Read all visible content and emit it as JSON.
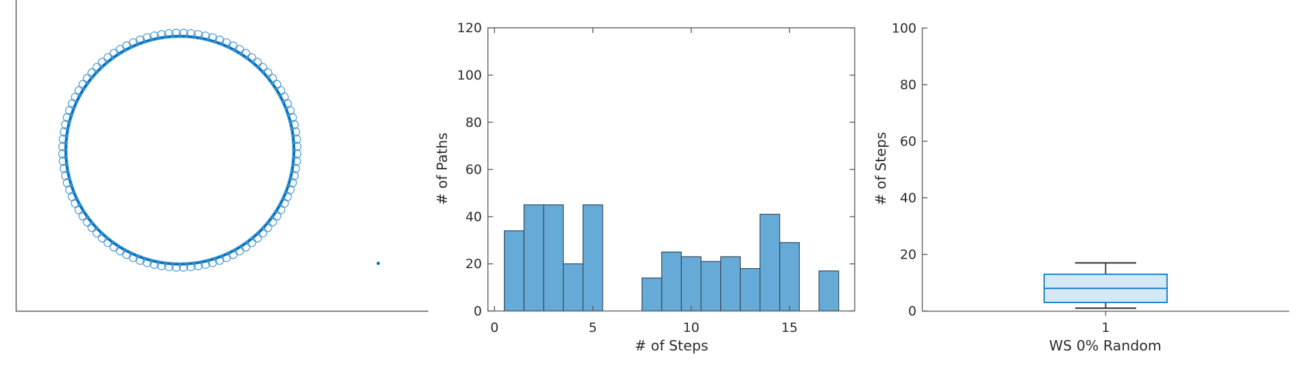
{
  "figure": {
    "type": "MATLAB-style figure with three panels",
    "background": "#ffffff"
  },
  "colors": {
    "edge_blue": "#0072BD",
    "node_circle_blue": "#4D9BD5",
    "hist_bar_fill": "#66AAD7",
    "hist_bar_edge": "#33495C",
    "box_fill": "#D6E7F6",
    "box_edge": "#0072BD",
    "whisker_color": "#2B2B2B",
    "spine_color": "#5F5F5F",
    "text_color": "#2B2B2B"
  },
  "network_panel": {
    "description": "ring lattice graph (Watts-Strogatz 0% random rewiring): thick blue ring of edges, open-circle node markers around it, one isolated node dot at lower right",
    "node_count": 100,
    "isolated_point": true
  },
  "histogram_panel": {
    "ylabel": "# of Paths",
    "xlabel": "# of Steps",
    "x_ticks": [
      "0",
      "5",
      "10",
      "15"
    ],
    "y_ticks": [
      "0",
      "20",
      "40",
      "60",
      "80",
      "100",
      "120"
    ]
  },
  "box_panel": {
    "ylabel": "# of Steps",
    "xlabel": "WS 0% Random",
    "x_ticks": [
      "1"
    ],
    "y_ticks": [
      "0",
      "20",
      "40",
      "60",
      "80",
      "100"
    ]
  },
  "chart_data": [
    {
      "type": "scatter",
      "subtype": "ring_network_graph",
      "n_nodes": 100,
      "layout": "circle",
      "note": "solid blue circular band of ring-lattice edges with small node dots on it, overlapping open-circle markers just outside the band, plus one isolated node point at lower right of the panel"
    },
    {
      "type": "bar",
      "subtype": "histogram",
      "xlabel": "# of Steps",
      "ylabel": "# of Paths",
      "bin_width": 1,
      "categories": [
        1,
        2,
        3,
        4,
        5,
        6,
        7,
        8,
        9,
        10,
        11,
        12,
        13,
        14,
        15,
        16,
        17
      ],
      "values": [
        34,
        45,
        45,
        20,
        45,
        0,
        0,
        14,
        25,
        23,
        21,
        23,
        18,
        41,
        29,
        0,
        17
      ],
      "xlim": [
        -0.35,
        18.3
      ],
      "ylim": [
        0,
        120
      ],
      "grid": false,
      "legend": false
    },
    {
      "type": "boxplot",
      "xlabel": "WS 0% Random",
      "ylabel": "# of Steps",
      "categories": [
        "1"
      ],
      "ylim": [
        0,
        100
      ],
      "stats": [
        {
          "group": "1",
          "min": 1,
          "q1": 3,
          "median": 8,
          "q3": 13,
          "max": 17
        }
      ],
      "grid": false
    }
  ]
}
